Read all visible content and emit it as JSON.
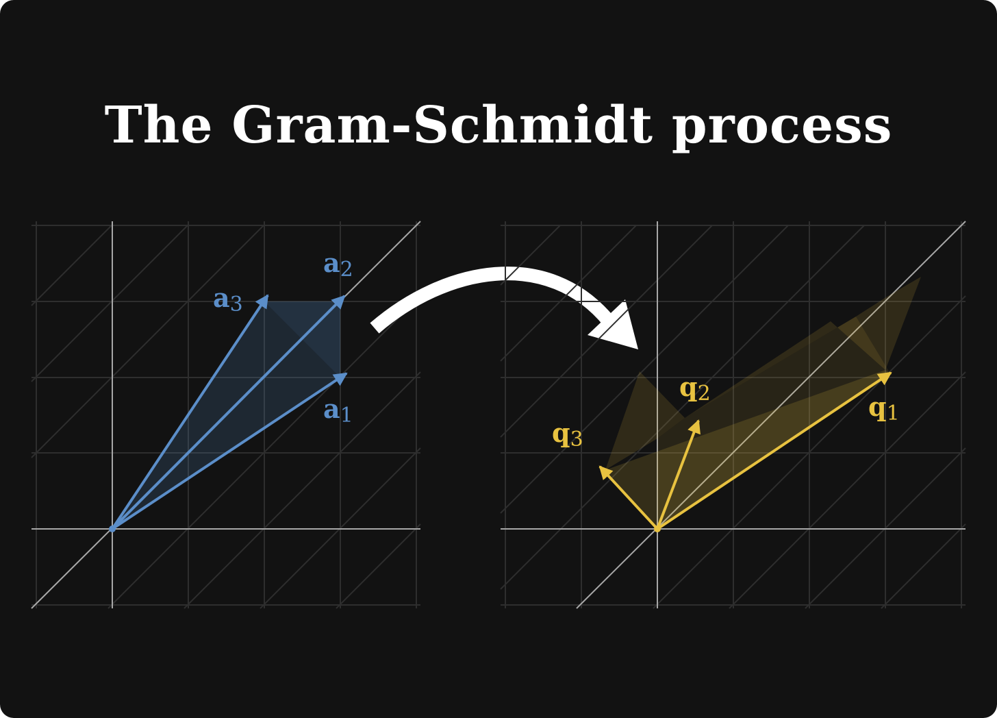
{
  "title": "The Gram-Schmidt process",
  "colors": {
    "background": "#121212",
    "grid": "#2e2e2e",
    "axis": "#a8a8a8",
    "input_vectors": "#5b8ec9",
    "output_vectors": "#e8c240",
    "arrow": "#ffffff"
  },
  "left_panel": {
    "vectors": [
      {
        "name": "a",
        "sub": "1"
      },
      {
        "name": "a",
        "sub": "2"
      },
      {
        "name": "a",
        "sub": "3"
      }
    ]
  },
  "right_panel": {
    "vectors": [
      {
        "name": "q",
        "sub": "1"
      },
      {
        "name": "q",
        "sub": "2"
      },
      {
        "name": "q",
        "sub": "3"
      }
    ]
  },
  "transition_icon": "curved-arrow-right"
}
